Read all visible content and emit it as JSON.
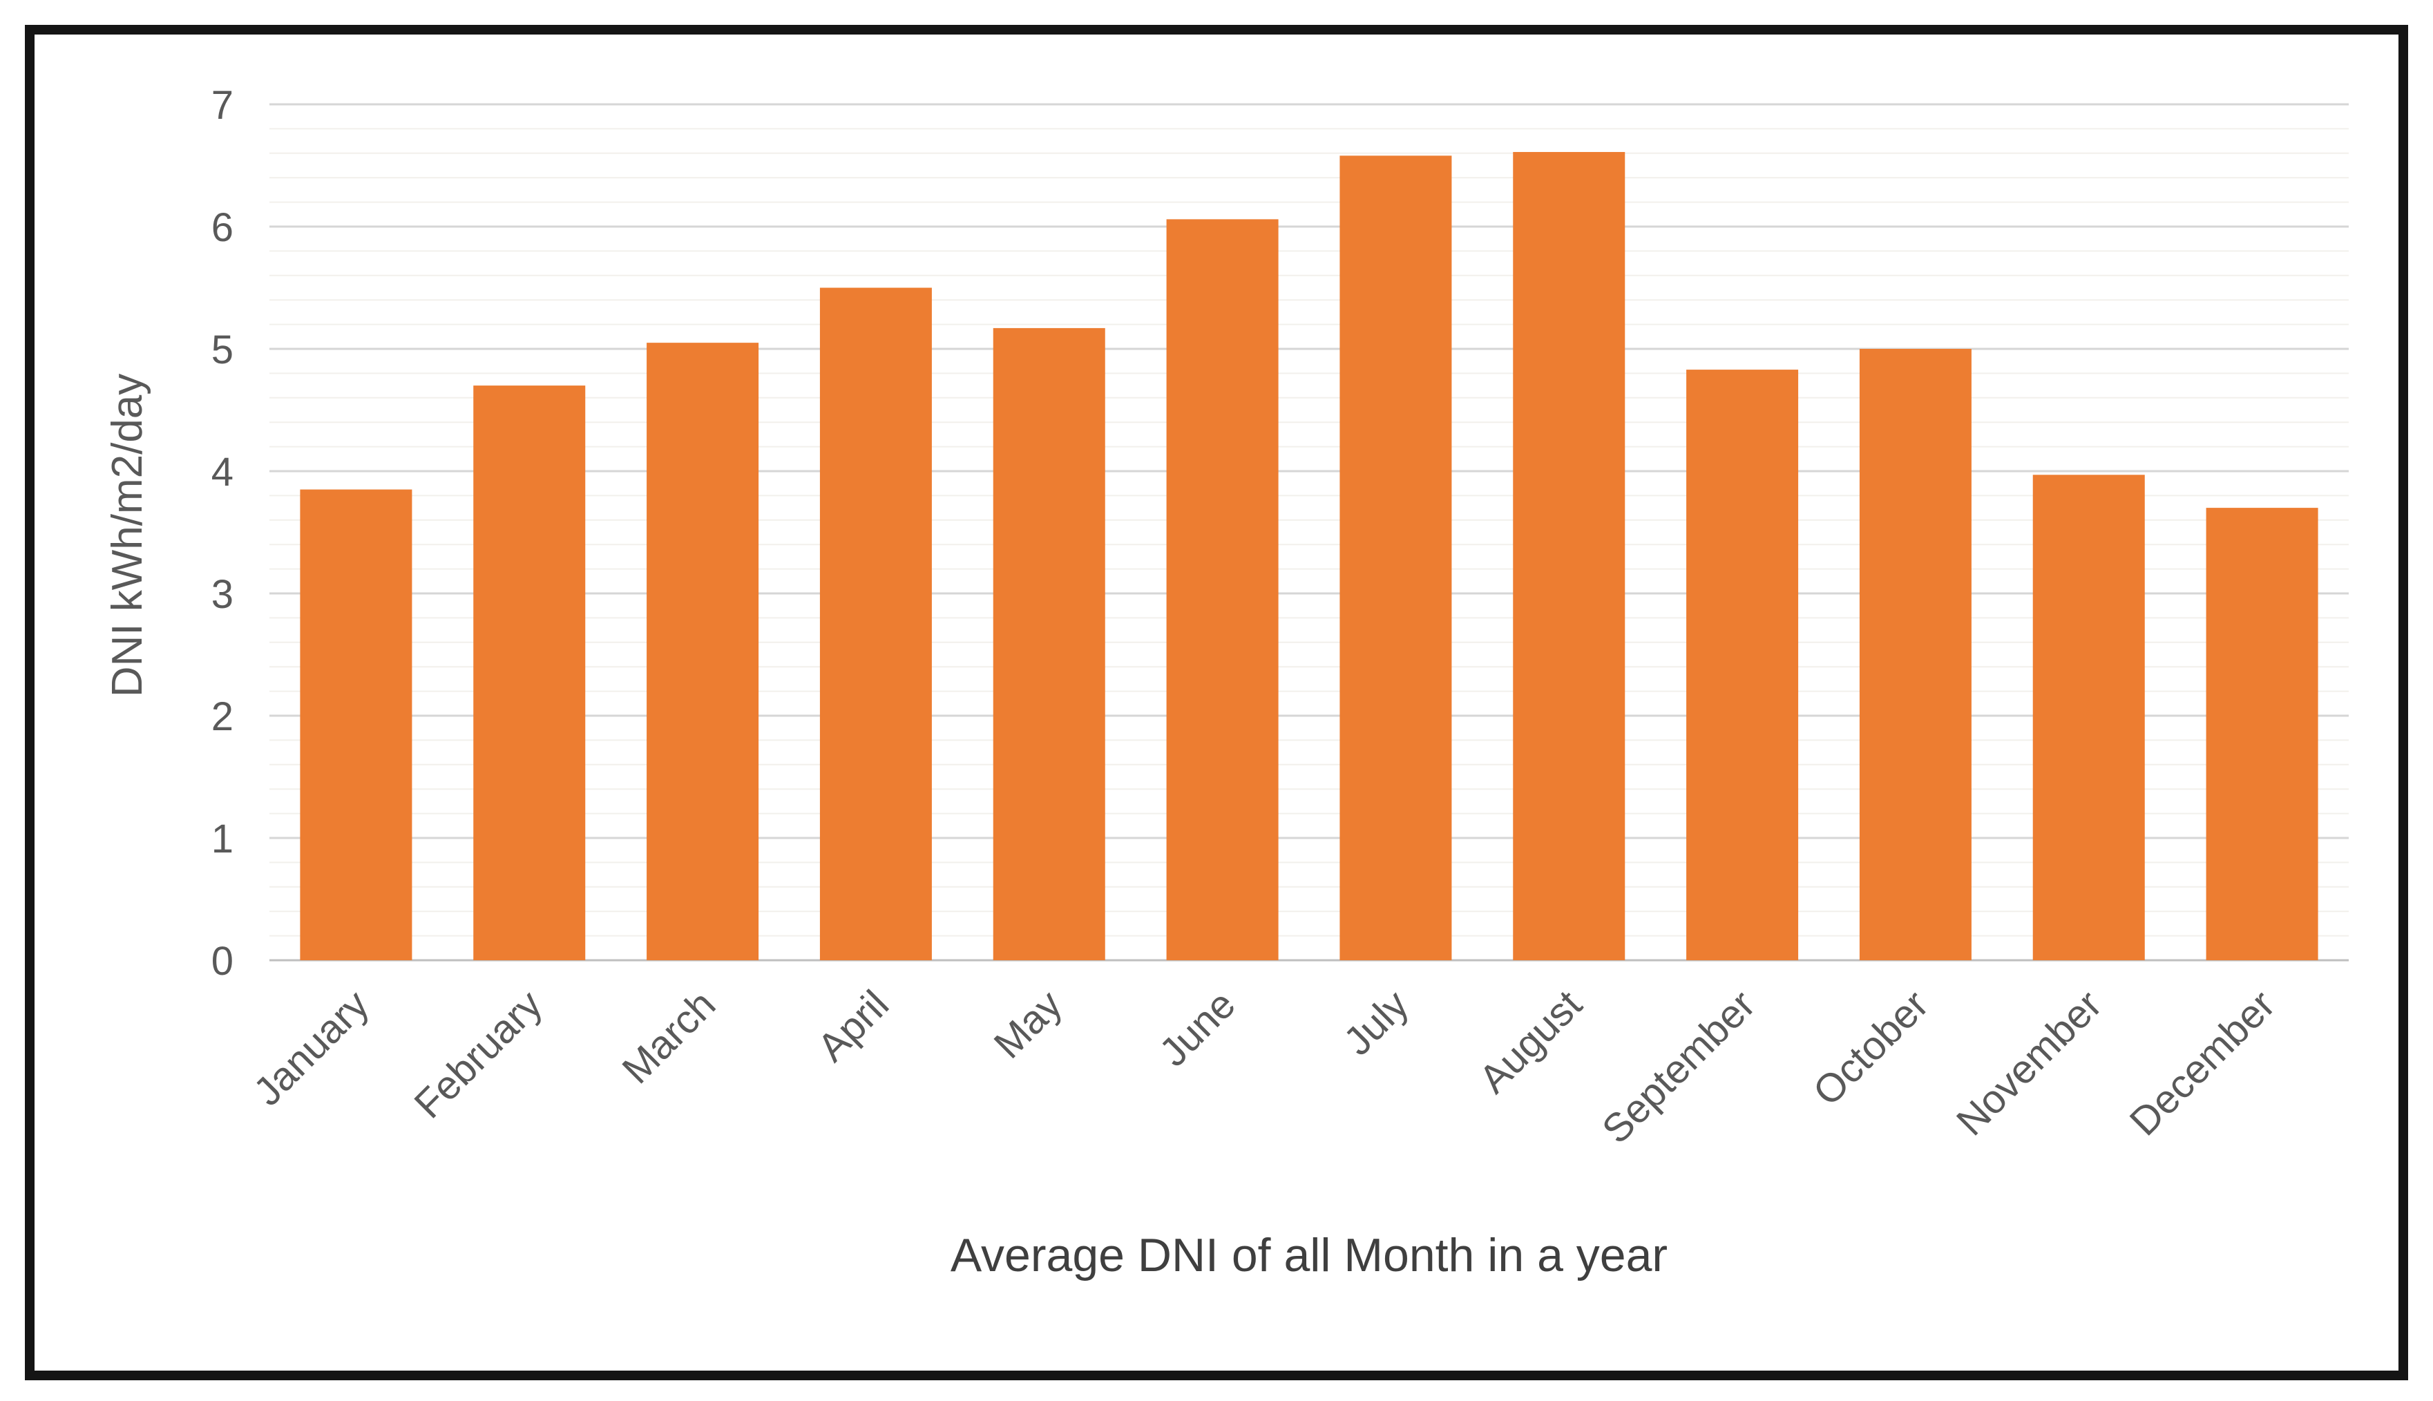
{
  "chart_data": {
    "type": "bar",
    "title": "",
    "xlabel": "Average DNI of all Month in a year",
    "ylabel": "DNI kWh/m2/day",
    "categories": [
      "January",
      "February",
      "March",
      "April",
      "May",
      "June",
      "July",
      "August",
      "September",
      "October",
      "November",
      "December"
    ],
    "values": [
      3.85,
      4.7,
      5.05,
      5.5,
      5.17,
      6.06,
      6.58,
      6.61,
      4.83,
      5.0,
      3.97,
      3.7
    ],
    "ylim": [
      0,
      7
    ],
    "yticks": [
      "0",
      "1",
      "2",
      "3",
      "4",
      "5",
      "6",
      "7"
    ],
    "minor_grid_step": 0.2,
    "grid": "horizontal",
    "legend_position": "none",
    "colors": {
      "bar": "#ED7D31",
      "bar_edge_shade": "#C96A2A",
      "major_gridline": "#D6D6D6",
      "minor_gridline": "#F2F0EC",
      "zero_line": "#BFBFBF",
      "tick_label": "#595959",
      "axis_title": "#3F3F3F",
      "frame_border": "#151515",
      "background": "#FFFFFF"
    }
  }
}
